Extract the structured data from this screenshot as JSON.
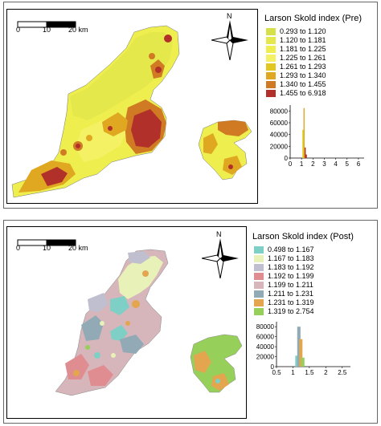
{
  "maps": [
    {
      "legend_title": "Larson Skold index (Pre)",
      "scale_labels": [
        "0",
        "10",
        "20 km"
      ],
      "north_label": "N",
      "classes": [
        {
          "label": "0.293 to 1.120",
          "color": "#d6e14a"
        },
        {
          "label": "1.120 to 1.181",
          "color": "#e4e84a"
        },
        {
          "label": "1.181 to 1.225",
          "color": "#eeee4e"
        },
        {
          "label": "1.225 to 1.261",
          "color": "#f4f264"
        },
        {
          "label": "1.261 to 1.293",
          "color": "#e2c81e"
        },
        {
          "label": "1.293 to 1.340",
          "color": "#e0a821"
        },
        {
          "label": "1.340 to 1.455",
          "color": "#d07a24"
        },
        {
          "label": "1.455 to 6.918",
          "color": "#b2302a"
        }
      ],
      "histogram": {
        "y_ticks": [
          "80000",
          "60000",
          "40000",
          "20000",
          "0"
        ],
        "x_ticks": [
          "0",
          "1",
          "2",
          "3",
          "4",
          "5",
          "6"
        ],
        "ylim": [
          0,
          90000
        ],
        "xlim": [
          0,
          6.5
        ],
        "bars": [
          {
            "x": 1.12,
            "value": 48000,
            "color": "#e2d21e"
          },
          {
            "x": 1.22,
            "value": 85000,
            "color": "#e0a821"
          },
          {
            "x": 1.32,
            "value": 18000,
            "color": "#b2302a"
          },
          {
            "x": 1.42,
            "value": 6000,
            "color": "#b2302a"
          }
        ]
      }
    },
    {
      "legend_title": "Larson Skold index  (Post)",
      "scale_labels": [
        "0",
        "10",
        "20 km"
      ],
      "north_label": "N",
      "classes": [
        {
          "label": "0.498 to 1.167",
          "color": "#7ecfc6"
        },
        {
          "label": "1.167 to 1.183",
          "color": "#e8f1b8"
        },
        {
          "label": "1.183 to 1.192",
          "color": "#bfbfcf"
        },
        {
          "label": "1.192 to 1.199",
          "color": "#e08d91"
        },
        {
          "label": "1.199 to 1.211",
          "color": "#d6b6ba"
        },
        {
          "label": "1.211 to 1.231",
          "color": "#92aab6"
        },
        {
          "label": "1.231 to 1.319",
          "color": "#e3a54e"
        },
        {
          "label": "1.319 to 2.754",
          "color": "#96cf5a"
        }
      ],
      "histogram": {
        "y_ticks": [
          "80000",
          "60000",
          "40000",
          "20000",
          "0"
        ],
        "x_ticks": [
          "0.5",
          "1",
          "1.5",
          "2",
          "2.5"
        ],
        "ylim": [
          0,
          90000
        ],
        "xlim": [
          0.5,
          2.75
        ],
        "bars": [
          {
            "x": 1.12,
            "value": 22000,
            "color": "#7ecfc6"
          },
          {
            "x": 1.18,
            "value": 80000,
            "color": "#92aab6"
          },
          {
            "x": 1.24,
            "value": 55000,
            "color": "#e3a54e"
          },
          {
            "x": 1.3,
            "value": 18000,
            "color": "#96cf5a"
          }
        ]
      }
    }
  ]
}
